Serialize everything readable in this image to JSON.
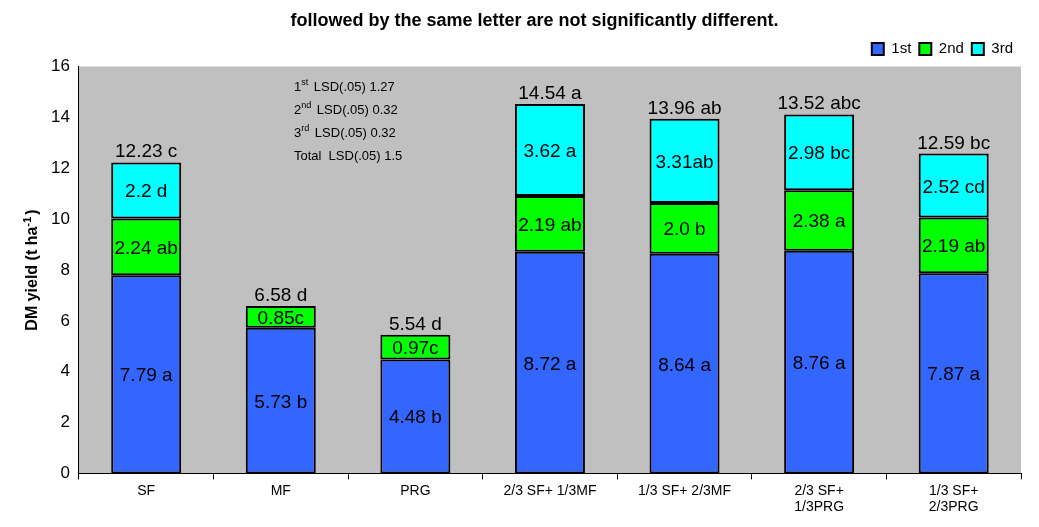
{
  "chart_data": {
    "type": "bar",
    "stacked": true,
    "title": "followed by the same letter are not significantly different.",
    "ylabel": "DM yield (t ha$^{-1}$)",
    "categories": [
      "SF",
      "MF",
      "PRG",
      "2/3 SF+ 1/3MF",
      "1/3 SF+ 2/3MF",
      "2/3 SF+ 1/3PRG",
      "1/3 SF+ 2/3PRG"
    ],
    "series": [
      {
        "name": "1st",
        "color": "#3366ff",
        "values": [
          7.79,
          5.73,
          4.48,
          8.72,
          8.64,
          8.76,
          7.87
        ],
        "value_labels": [
          "7.79 a",
          "5.73 b",
          "4.48 b",
          "8.72 a",
          "8.64 a",
          "8.76 a",
          "7.87 a"
        ]
      },
      {
        "name": "2nd",
        "color": "#00ff00",
        "values": [
          2.24,
          0.85,
          0.97,
          2.19,
          2.0,
          2.38,
          2.19
        ],
        "value_labels": [
          "2.24 ab",
          "0.85c",
          "0.97c",
          "2.19 ab",
          "2.0 b",
          "2.38 a",
          "2.19 ab"
        ]
      },
      {
        "name": "3rd",
        "color": "#00ffff",
        "values": [
          2.2,
          null,
          null,
          3.62,
          3.31,
          2.98,
          2.52
        ],
        "value_labels": [
          "2.2 d",
          null,
          null,
          "3.62 a",
          "3.31ab",
          "2.98 bc",
          "2.52 cd"
        ]
      }
    ],
    "ylim": [
      0,
      16
    ],
    "yticks": [
      0,
      2,
      4,
      6,
      8,
      10,
      12,
      14,
      16
    ],
    "grid": false,
    "legend": "top right",
    "annotations": [
      "1$^{st}$ LSD(.05) 1.27",
      "2$^{nd}$ LSD(.05) 0.32",
      "3$^{rd}$ LSD(.05) 0.32",
      "Total  LSD(.05) 1.5",
      {
        "text": "12.23 c",
        "x": "SF",
        "y": 12.23
      },
      {
        "text": "6.58 d",
        "x": "MF",
        "y": 6.58
      },
      {
        "text": "5.54 d",
        "x": "PRG",
        "y": 5.45
      },
      {
        "text": "14.54 a",
        "x": "2/3 SF+ 1/3MF",
        "y": 14.53
      },
      {
        "text": "13.96 ab",
        "x": "1/3 SF+ 2/3MF",
        "y": 13.95
      },
      {
        "text": "13.52 abc",
        "x": "2/3 SF+ 1/3PRG",
        "y": 14.12
      },
      {
        "text": "12.59 bc",
        "x": "1/3 SF+ 2/3PRG",
        "y": 12.58
      }
    ]
  }
}
